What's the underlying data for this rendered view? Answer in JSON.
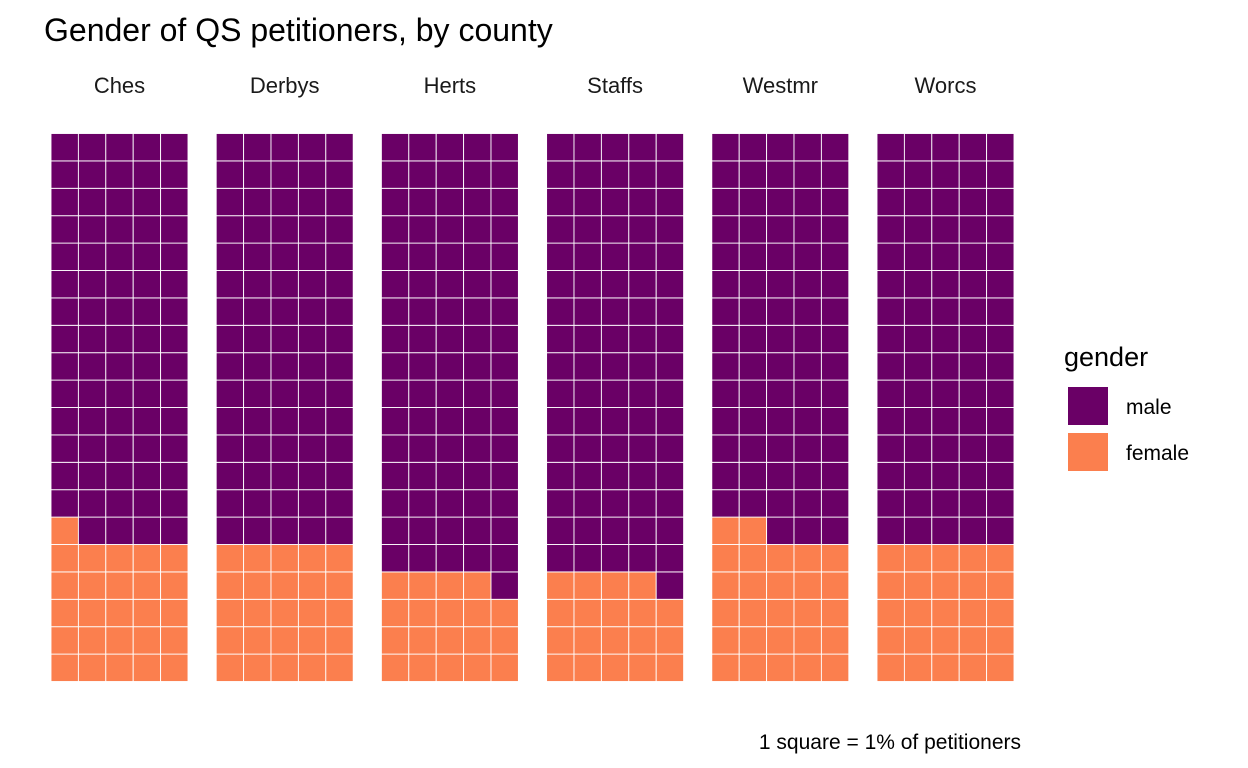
{
  "chart_data": {
    "type": "waffle",
    "title": "Gender of QS petitioners, by county",
    "caption": "1 square = 1% of petitioners",
    "unit": "1 square = 1% of petitioners",
    "grid": {
      "rows": 20,
      "columns": 5
    },
    "colors": {
      "male": "#6a0066",
      "female": "#fb7f4e"
    },
    "legend": {
      "title": "gender",
      "position": "right",
      "items": [
        "male",
        "female"
      ]
    },
    "categories": [
      "Ches",
      "Derbys",
      "Herts",
      "Staffs",
      "Westmr",
      "Worcs"
    ],
    "series": [
      {
        "name": "male",
        "values": [
          74,
          75,
          81,
          81,
          73,
          75
        ]
      },
      {
        "name": "female",
        "values": [
          26,
          25,
          19,
          19,
          27,
          25
        ]
      }
    ]
  }
}
